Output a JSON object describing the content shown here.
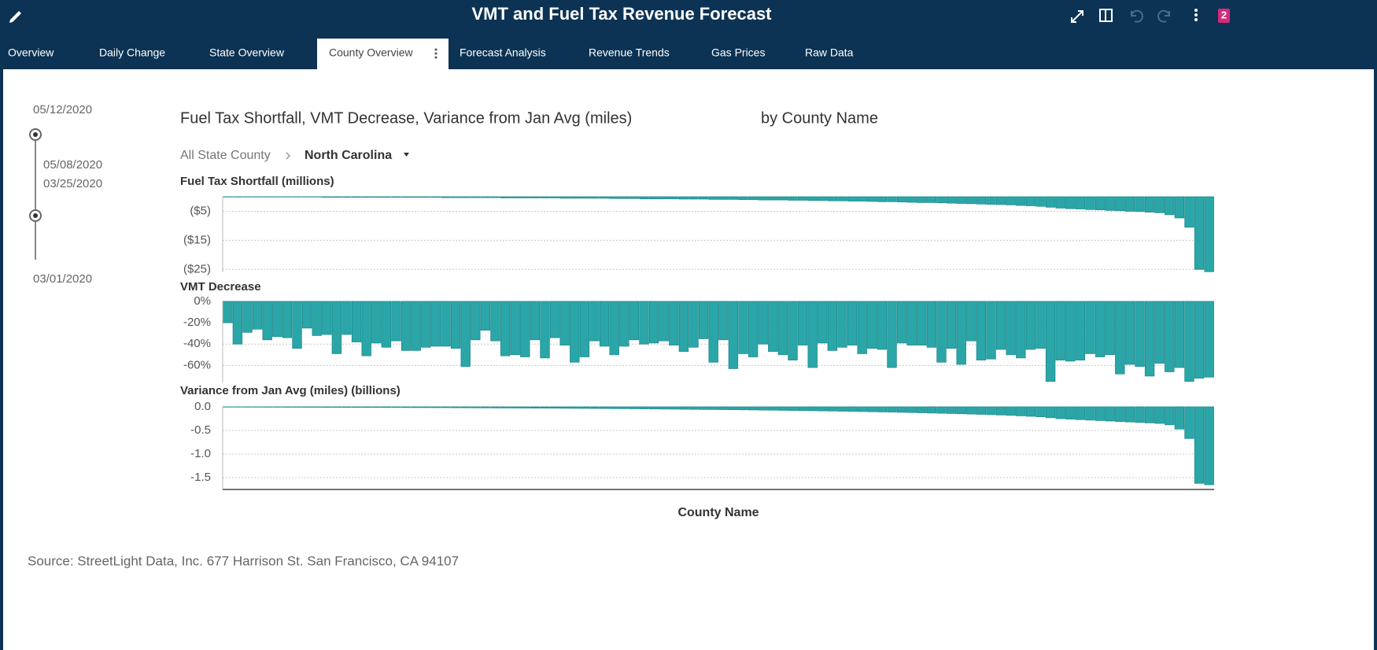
{
  "header": {
    "title": "VMT and Fuel Tax Revenue Forecast",
    "badge": "2"
  },
  "tabs": [
    "Overview",
    "Daily Change",
    "State Overview",
    "County Overview",
    "Forecast Analysis",
    "Revenue Trends",
    "Gas Prices",
    "Raw Data"
  ],
  "active_tab": 3,
  "slider": {
    "max_date": "05/12/2020",
    "selected_end": "05/08/2020",
    "selected_start": "03/25/2020",
    "min_date": "03/01/2020"
  },
  "report": {
    "title": "Fuel Tax Shortfall, VMT Decrease, Variance from Jan Avg (miles)",
    "by": "by County Name",
    "breadcrumb": [
      "All State County",
      "North Carolina"
    ],
    "xlabel": "County Name",
    "source": "Source:  StreetLight Data, Inc. 677 Harrison St. San Francisco, CA 94107"
  },
  "chart_data": [
    {
      "type": "bar",
      "title": "Fuel Tax Shortfall (millions)",
      "color": "#2ba6a8",
      "grid": true,
      "ylim": [
        -26,
        0
      ],
      "yticks": [
        {
          "value": -5,
          "label": "($5)"
        },
        {
          "value": -15,
          "label": "($15)"
        },
        {
          "value": -25,
          "label": "($25)"
        }
      ],
      "values": [
        -0.1,
        -0.1,
        -0.1,
        -0.1,
        -0.1,
        -0.1,
        -0.1,
        -0.1,
        -0.1,
        -0.1,
        -0.2,
        -0.2,
        -0.2,
        -0.2,
        -0.2,
        -0.2,
        -0.2,
        -0.2,
        -0.2,
        -0.2,
        -0.2,
        -0.2,
        -0.3,
        -0.3,
        -0.3,
        -0.3,
        -0.3,
        -0.3,
        -0.4,
        -0.4,
        -0.4,
        -0.4,
        -0.4,
        -0.4,
        -0.5,
        -0.5,
        -0.5,
        -0.5,
        -0.5,
        -0.6,
        -0.6,
        -0.6,
        -0.7,
        -0.7,
        -0.7,
        -0.7,
        -0.8,
        -0.8,
        -0.8,
        -0.9,
        -0.9,
        -0.9,
        -1.0,
        -1.0,
        -1.1,
        -1.1,
        -1.1,
        -1.2,
        -1.2,
        -1.3,
        -1.3,
        -1.4,
        -1.4,
        -1.5,
        -1.5,
        -1.6,
        -1.7,
        -1.7,
        -1.8,
        -1.9,
        -2.0,
        -2.0,
        -2.1,
        -2.2,
        -2.3,
        -2.4,
        -2.5,
        -2.6,
        -2.7,
        -2.8,
        -3.0,
        -3.1,
        -3.3,
        -3.6,
        -3.9,
        -4.1,
        -4.2,
        -4.4,
        -4.5,
        -4.7,
        -4.8,
        -5.0,
        -5.1,
        -5.3,
        -5.5,
        -6.2,
        -7.3,
        -10.5,
        -25.0,
        -25.8
      ]
    },
    {
      "type": "bar",
      "title": "VMT Decrease",
      "color": "#2ba6a8",
      "grid": true,
      "ylim": [
        -76,
        0
      ],
      "yticks": [
        {
          "value": 0,
          "label": "0%"
        },
        {
          "value": -20,
          "label": "-20%"
        },
        {
          "value": -40,
          "label": "-40%"
        },
        {
          "value": -60,
          "label": "-60%"
        }
      ],
      "values": [
        -20,
        -40,
        -29,
        -26,
        -36,
        -33,
        -34,
        -44,
        -25,
        -32,
        -31,
        -49,
        -31,
        -38,
        -51,
        -39,
        -43,
        -37,
        -46,
        -46,
        -43,
        -42,
        -42,
        -44,
        -61,
        -36,
        -27,
        -37,
        -51,
        -50,
        -52,
        -36,
        -53,
        -34,
        -41,
        -57,
        -52,
        -37,
        -42,
        -50,
        -42,
        -36,
        -40,
        -39,
        -37,
        -41,
        -47,
        -43,
        -35,
        -57,
        -36,
        -63,
        -49,
        -52,
        -40,
        -47,
        -50,
        -55,
        -41,
        -62,
        -39,
        -46,
        -43,
        -41,
        -49,
        -44,
        -45,
        -62,
        -39,
        -41,
        -41,
        -43,
        -57,
        -44,
        -59,
        -37,
        -55,
        -54,
        -45,
        -50,
        -53,
        -45,
        -44,
        -75,
        -55,
        -56,
        -55,
        -49,
        -52,
        -50,
        -68,
        -59,
        -61,
        -70,
        -58,
        -66,
        -62,
        -75,
        -72,
        -71
      ]
    },
    {
      "type": "bar",
      "title": "Variance from Jan Avg (miles) (billions)",
      "color": "#2ba6a8",
      "grid": true,
      "ylim": [
        -1.75,
        0
      ],
      "yticks": [
        {
          "value": 0,
          "label": "0.0"
        },
        -0.5,
        {
          "value": -1,
          "label": "-1.0"
        },
        -1.5
      ],
      "values": [
        -0.005,
        -0.005,
        -0.006,
        -0.006,
        -0.007,
        -0.007,
        -0.008,
        -0.008,
        -0.009,
        -0.009,
        -0.01,
        -0.01,
        -0.011,
        -0.011,
        -0.012,
        -0.012,
        -0.013,
        -0.013,
        -0.014,
        -0.015,
        -0.015,
        -0.016,
        -0.017,
        -0.018,
        -0.019,
        -0.02,
        -0.021,
        -0.022,
        -0.023,
        -0.024,
        -0.025,
        -0.026,
        -0.027,
        -0.028,
        -0.03,
        -0.031,
        -0.032,
        -0.034,
        -0.035,
        -0.037,
        -0.038,
        -0.04,
        -0.042,
        -0.044,
        -0.046,
        -0.048,
        -0.05,
        -0.052,
        -0.054,
        -0.056,
        -0.058,
        -0.06,
        -0.062,
        -0.065,
        -0.068,
        -0.07,
        -0.073,
        -0.076,
        -0.079,
        -0.082,
        -0.085,
        -0.088,
        -0.092,
        -0.095,
        -0.099,
        -0.103,
        -0.107,
        -0.111,
        -0.115,
        -0.12,
        -0.125,
        -0.13,
        -0.135,
        -0.14,
        -0.146,
        -0.152,
        -0.158,
        -0.165,
        -0.172,
        -0.18,
        -0.19,
        -0.2,
        -0.21,
        -0.23,
        -0.25,
        -0.26,
        -0.27,
        -0.28,
        -0.29,
        -0.3,
        -0.31,
        -0.32,
        -0.33,
        -0.34,
        -0.35,
        -0.38,
        -0.47,
        -0.67,
        -1.62,
        -1.65
      ]
    }
  ]
}
